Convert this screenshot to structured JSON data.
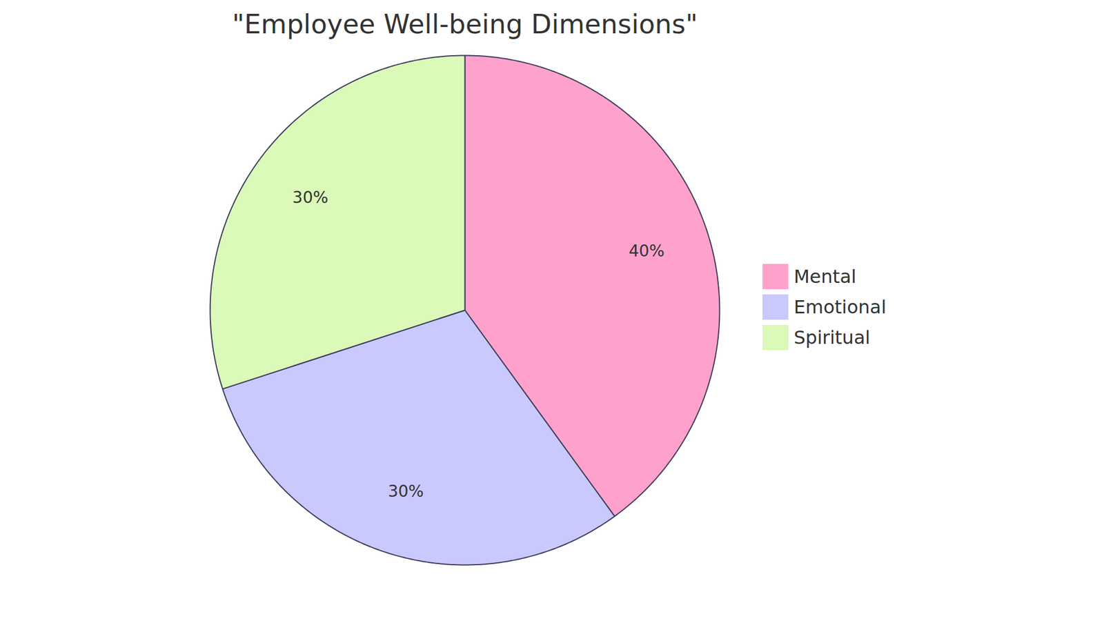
{
  "chart_data": {
    "type": "pie",
    "title": "\"Employee Well-being Dimensions\"",
    "categories": [
      "Mental",
      "Emotional",
      "Spiritual"
    ],
    "values": [
      40,
      30,
      30
    ],
    "value_labels": [
      "40%",
      "30%",
      "30%"
    ],
    "colors": [
      "#fea2cd",
      "#c9c9fd",
      "#dbf9b9"
    ],
    "data_labels": true,
    "legend": "right"
  }
}
